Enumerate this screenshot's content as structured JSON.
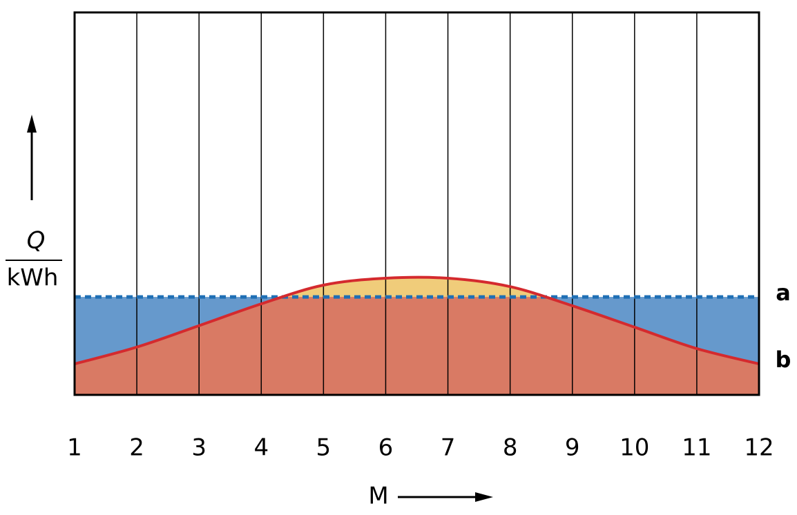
{
  "chart_data": {
    "type": "line",
    "x_label": "M",
    "y_label": {
      "quantity": "Q",
      "unit": "kWh"
    },
    "x": [
      1,
      2,
      3,
      4,
      5,
      6,
      7,
      8,
      9,
      10,
      11,
      12
    ],
    "xlim": [
      1,
      12
    ],
    "xticks": [
      1,
      2,
      3,
      4,
      5,
      6,
      7,
      8,
      9,
      10,
      11,
      12
    ],
    "ylim": [
      0,
      100
    ],
    "grid": true,
    "series": [
      {
        "name": "a",
        "color": "#1f6fb5",
        "fill": "#6699cc",
        "style": "dotted",
        "values": [
          25.6,
          25.6,
          25.6,
          25.6,
          25.6,
          25.6,
          25.6,
          25.6,
          25.6,
          25.6,
          25.6,
          25.6
        ]
      },
      {
        "name": "b",
        "color": "#d42a2e",
        "fill": "#d97a64",
        "excess_fill": "#f0cc7a",
        "style": "solid",
        "values": [
          8.1,
          12.5,
          18.1,
          23.8,
          28.7,
          30.5,
          30.5,
          28.3,
          23.3,
          17.7,
          12.1,
          8.1
        ]
      }
    ]
  }
}
